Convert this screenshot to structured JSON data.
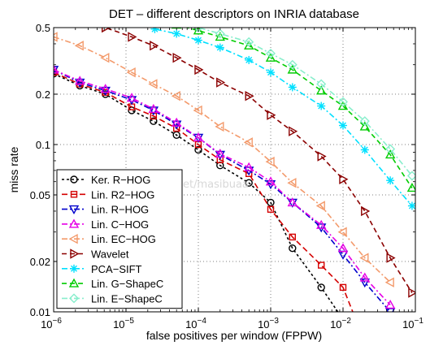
{
  "chart_data": {
    "type": "line",
    "title": "DET – different descriptors on INRIA database",
    "xlabel": "false positives per window (FPPW)",
    "ylabel": "miss rate",
    "xscale": "log",
    "yscale": "log",
    "xlim": [
      1e-06,
      0.1
    ],
    "ylim": [
      0.01,
      0.5
    ],
    "grid": true,
    "legend_position": "bottom-left",
    "x_ticks": [
      {
        "value": 1e-06,
        "base": "10",
        "exp": "−6"
      },
      {
        "value": 1e-05,
        "base": "10",
        "exp": "−5"
      },
      {
        "value": 0.0001,
        "base": "10",
        "exp": "−4"
      },
      {
        "value": 0.001,
        "base": "10",
        "exp": "−3"
      },
      {
        "value": 0.01,
        "base": "10",
        "exp": "−2"
      },
      {
        "value": 0.1,
        "base": "10",
        "exp": "−1"
      }
    ],
    "y_ticks": [
      {
        "value": 0.01,
        "label": "0.01"
      },
      {
        "value": 0.02,
        "label": "0.02"
      },
      {
        "value": 0.05,
        "label": "0.05"
      },
      {
        "value": 0.1,
        "label": "0.1"
      },
      {
        "value": 0.2,
        "label": "0.2"
      },
      {
        "value": 0.5,
        "label": "0.5"
      }
    ],
    "series": [
      {
        "name": "Ker. R−HOG",
        "color": "#000000",
        "dash": "3,3",
        "marker": "circle",
        "x": [
          1e-06,
          2.3e-06,
          5.2e-06,
          1.2e-05,
          2.4e-05,
          5e-05,
          0.0001,
          0.0002,
          0.0005,
          0.001,
          0.002,
          0.005,
          0.01
        ],
        "y": [
          0.265,
          0.225,
          0.2,
          0.16,
          0.138,
          0.114,
          0.093,
          0.075,
          0.059,
          0.045,
          0.024,
          0.014,
          0.009
        ]
      },
      {
        "name": "Lin. R2−HOG",
        "color": "#d40000",
        "dash": "7,4",
        "marker": "square",
        "x": [
          1e-06,
          2.3e-06,
          5.2e-06,
          1.2e-05,
          2.4e-05,
          5e-05,
          0.0001,
          0.0002,
          0.0005,
          0.001,
          0.002,
          0.005,
          0.01,
          0.015
        ],
        "y": [
          0.27,
          0.23,
          0.205,
          0.168,
          0.148,
          0.125,
          0.1,
          0.081,
          0.067,
          0.041,
          0.028,
          0.019,
          0.014,
          0.009
        ]
      },
      {
        "name": "Lin. R−HOG",
        "color": "#0000cc",
        "dash": "7,3,2,3",
        "marker": "triangle-down",
        "x": [
          1e-06,
          2.3e-06,
          5.2e-06,
          1.2e-05,
          2.4e-05,
          5e-05,
          0.0001,
          0.0002,
          0.0005,
          0.001,
          0.002,
          0.005,
          0.01,
          0.02,
          0.045
        ],
        "y": [
          0.28,
          0.235,
          0.21,
          0.185,
          0.16,
          0.132,
          0.11,
          0.087,
          0.07,
          0.058,
          0.045,
          0.032,
          0.022,
          0.015,
          0.01
        ]
      },
      {
        "name": "Lin. C−HOG",
        "color": "#e600e6",
        "dash": "7,3,2,3",
        "marker": "triangle-up",
        "x": [
          1e-06,
          2.3e-06,
          5.2e-06,
          1.2e-05,
          2.4e-05,
          5e-05,
          0.0001,
          0.0002,
          0.0005,
          0.001,
          0.002,
          0.005,
          0.01,
          0.02,
          0.045
        ],
        "y": [
          0.28,
          0.24,
          0.215,
          0.19,
          0.163,
          0.135,
          0.11,
          0.088,
          0.073,
          0.06,
          0.045,
          0.033,
          0.024,
          0.016,
          0.011
        ]
      },
      {
        "name": "Lin. EC−HOG",
        "color": "#f39a6b",
        "dash": "7,3,2,3",
        "marker": "triangle-left",
        "x": [
          1e-06,
          2.3e-06,
          5.2e-06,
          1.2e-05,
          2.4e-05,
          5e-05,
          0.0001,
          0.0002,
          0.0005,
          0.001,
          0.002,
          0.005,
          0.01,
          0.02,
          0.045
        ],
        "y": [
          0.44,
          0.39,
          0.33,
          0.27,
          0.23,
          0.195,
          0.16,
          0.128,
          0.103,
          0.079,
          0.059,
          0.043,
          0.03,
          0.021,
          0.015
        ]
      },
      {
        "name": "Wavelet",
        "color": "#8b0000",
        "dash": "6,4",
        "marker": "triangle-right",
        "x": [
          2e-06,
          5.2e-06,
          1.2e-05,
          2.4e-05,
          5e-05,
          0.0001,
          0.0002,
          0.0005,
          0.001,
          0.002,
          0.005,
          0.01,
          0.02,
          0.045,
          0.09
        ],
        "y": [
          0.55,
          0.5,
          0.44,
          0.39,
          0.33,
          0.28,
          0.235,
          0.195,
          0.15,
          0.12,
          0.085,
          0.062,
          0.04,
          0.021,
          0.013
        ]
      },
      {
        "name": "PCA−SIFT",
        "color": "#00e0ff",
        "dash": "7,3,2,3",
        "marker": "star",
        "x": [
          2e-05,
          2.5e-05,
          5e-05,
          0.0001,
          0.0002,
          0.0005,
          0.001,
          0.002,
          0.005,
          0.01,
          0.02,
          0.045,
          0.09
        ],
        "y": [
          0.55,
          0.49,
          0.46,
          0.42,
          0.38,
          0.32,
          0.27,
          0.22,
          0.17,
          0.13,
          0.093,
          0.061,
          0.043
        ]
      },
      {
        "name": "Lin. G−ShapeC",
        "color": "#00cc00",
        "dash": "6,4",
        "marker": "triangle-up",
        "x": [
          5e-05,
          0.0001,
          0.0002,
          0.0005,
          0.001,
          0.002,
          0.005,
          0.01,
          0.02,
          0.045,
          0.09
        ],
        "y": [
          0.52,
          0.48,
          0.44,
          0.39,
          0.33,
          0.28,
          0.21,
          0.17,
          0.128,
          0.087,
          0.055
        ]
      },
      {
        "name": "Lin. E−ShapeC",
        "color": "#88eecc",
        "dash": "7,3,2,3",
        "marker": "diamond",
        "x": [
          5e-05,
          0.0001,
          0.0002,
          0.0005,
          0.001,
          0.002,
          0.005,
          0.01,
          0.02,
          0.045,
          0.09
        ],
        "y": [
          0.55,
          0.5,
          0.46,
          0.41,
          0.35,
          0.3,
          0.23,
          0.18,
          0.138,
          0.094,
          0.065
        ]
      }
    ],
    "watermark": "blog.csdn.net/masibuaa"
  }
}
